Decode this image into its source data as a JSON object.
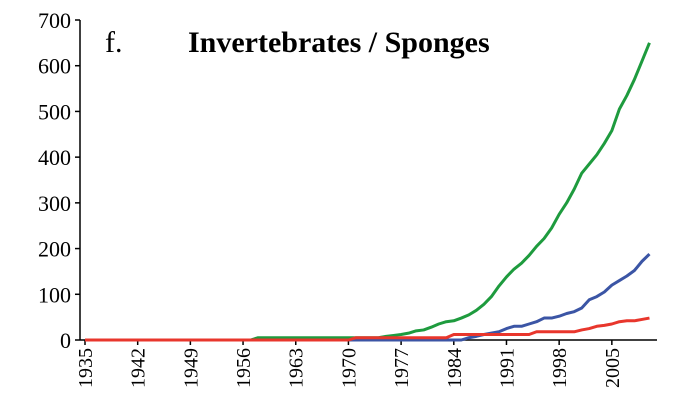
{
  "chart_data": {
    "type": "line",
    "panel_label": "f.",
    "title": "Invertebrates / Sponges",
    "x": [
      1935,
      1936,
      1937,
      1938,
      1939,
      1940,
      1941,
      1942,
      1943,
      1944,
      1945,
      1946,
      1947,
      1948,
      1949,
      1950,
      1951,
      1952,
      1953,
      1954,
      1955,
      1956,
      1957,
      1958,
      1959,
      1960,
      1961,
      1962,
      1963,
      1964,
      1965,
      1966,
      1967,
      1968,
      1969,
      1970,
      1971,
      1972,
      1973,
      1974,
      1975,
      1976,
      1977,
      1978,
      1979,
      1980,
      1981,
      1982,
      1983,
      1984,
      1985,
      1986,
      1987,
      1988,
      1989,
      1990,
      1991,
      1992,
      1993,
      1994,
      1995,
      1996,
      1997,
      1998,
      1999,
      2000,
      2001,
      2002,
      2003,
      2004,
      2005,
      2006,
      2007,
      2008,
      2009,
      2010
    ],
    "series": [
      {
        "color": "#1e9b3e",
        "values": [
          0,
          0,
          0,
          0,
          0,
          0,
          0,
          0,
          0,
          0,
          0,
          0,
          0,
          0,
          0,
          0,
          0,
          0,
          0,
          0,
          0,
          0,
          0,
          5,
          5,
          5,
          5,
          5,
          5,
          5,
          5,
          5,
          5,
          5,
          5,
          5,
          5,
          5,
          5,
          5,
          8,
          10,
          12,
          15,
          20,
          22,
          28,
          35,
          40,
          42,
          48,
          55,
          65,
          78,
          95,
          118,
          138,
          155,
          168,
          185,
          205,
          222,
          245,
          275,
          300,
          330,
          365,
          385,
          405,
          430,
          458,
          505,
          535,
          570,
          610,
          650
        ]
      },
      {
        "color": "#3b55a5",
        "values": [
          0,
          0,
          0,
          0,
          0,
          0,
          0,
          0,
          0,
          0,
          0,
          0,
          0,
          0,
          0,
          0,
          0,
          0,
          0,
          0,
          0,
          0,
          0,
          0,
          0,
          0,
          0,
          0,
          0,
          0,
          0,
          0,
          0,
          0,
          0,
          0,
          0,
          0,
          0,
          0,
          0,
          0,
          0,
          0,
          0,
          0,
          0,
          0,
          0,
          0,
          0,
          5,
          8,
          12,
          15,
          18,
          25,
          30,
          30,
          35,
          40,
          48,
          48,
          52,
          58,
          62,
          70,
          88,
          95,
          105,
          120,
          130,
          140,
          152,
          172,
          188
        ]
      },
      {
        "color": "#e8362c",
        "values": [
          0,
          0,
          0,
          0,
          0,
          0,
          0,
          0,
          0,
          0,
          0,
          0,
          0,
          0,
          0,
          0,
          0,
          0,
          0,
          0,
          0,
          0,
          0,
          0,
          0,
          0,
          0,
          0,
          0,
          0,
          0,
          0,
          0,
          0,
          0,
          0,
          5,
          5,
          5,
          5,
          5,
          5,
          5,
          5,
          5,
          5,
          5,
          5,
          5,
          12,
          12,
          12,
          12,
          12,
          12,
          12,
          12,
          12,
          12,
          12,
          18,
          18,
          18,
          18,
          18,
          18,
          22,
          25,
          30,
          32,
          35,
          40,
          42,
          42,
          45,
          48
        ]
      }
    ],
    "xlim": [
      1935,
      2011
    ],
    "xticks": [
      1935,
      1942,
      1949,
      1956,
      1963,
      1970,
      1977,
      1984,
      1991,
      1998,
      2005
    ],
    "ylim": [
      0,
      700
    ],
    "yticks": [
      0,
      100,
      200,
      300,
      400,
      500,
      600,
      700
    ]
  }
}
